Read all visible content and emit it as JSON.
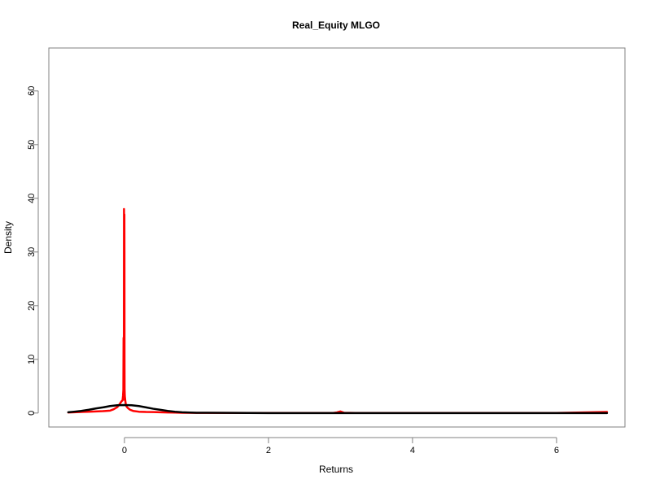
{
  "chart_data": {
    "type": "line",
    "title": "Real_Equity MLGO",
    "xlabel": "Returns",
    "ylabel": "Density",
    "xlim": [
      -1.05,
      6.95
    ],
    "ylim": [
      -2.6,
      68
    ],
    "x_ticks": [
      0,
      2,
      4,
      6
    ],
    "y_ticks": [
      0,
      10,
      20,
      30,
      40,
      50,
      60
    ],
    "grid": false,
    "legend": "none",
    "colors": {
      "empirical": "#ff0000",
      "normal": "#000000",
      "axis": "#808080"
    },
    "series": [
      {
        "color": "#ff0000",
        "x": [
          -0.78,
          -0.7,
          -0.6,
          -0.5,
          -0.4,
          -0.3,
          -0.2,
          -0.15,
          -0.1,
          -0.07,
          -0.05,
          -0.04,
          -0.03,
          -0.025,
          -0.02,
          -0.015,
          -0.012,
          -0.01,
          -0.008,
          -0.006,
          -0.005,
          -0.004,
          -0.003,
          -0.002,
          -0.001,
          0,
          0.001,
          0.002,
          0.004,
          0.006,
          0.008,
          0.01,
          0.015,
          0.02,
          0.03,
          0.05,
          0.08,
          0.12,
          0.2,
          0.3,
          0.4,
          0.5,
          0.6,
          0.7,
          0.8,
          1.0,
          2.0,
          2.9,
          2.95,
          3.0,
          3.05,
          3.2,
          4.0,
          5.0,
          6.0,
          6.7
        ],
        "y": [
          0.1,
          0.15,
          0.2,
          0.25,
          0.3,
          0.35,
          0.45,
          0.7,
          1.1,
          1.6,
          2.0,
          2.2,
          2.3,
          2.5,
          3.2,
          4.3,
          14,
          2.5,
          5,
          38,
          33,
          36,
          14,
          8,
          37,
          30,
          10,
          4.5,
          3.5,
          3.0,
          2.8,
          2.5,
          2.0,
          1.5,
          1.2,
          0.9,
          0.6,
          0.4,
          0.25,
          0.2,
          0.18,
          0.15,
          0.1,
          0.08,
          0.05,
          0.03,
          0.02,
          0.02,
          0.12,
          0.3,
          0.05,
          0.02,
          0.02,
          0.02,
          0.02,
          0.2
        ]
      },
      {
        "color": "#000000",
        "x": [
          -0.78,
          -0.7,
          -0.6,
          -0.5,
          -0.4,
          -0.3,
          -0.2,
          -0.1,
          0,
          0.1,
          0.2,
          0.3,
          0.4,
          0.5,
          0.6,
          0.7,
          0.8,
          1.0,
          2.0,
          3.0,
          4.0,
          5.0,
          6.0,
          6.7
        ],
        "y": [
          0.15,
          0.25,
          0.4,
          0.6,
          0.85,
          1.05,
          1.3,
          1.45,
          1.5,
          1.45,
          1.3,
          1.05,
          0.8,
          0.6,
          0.4,
          0.25,
          0.15,
          0.05,
          0.0,
          0.0,
          0.0,
          0.0,
          0.0,
          0.0
        ]
      }
    ]
  }
}
